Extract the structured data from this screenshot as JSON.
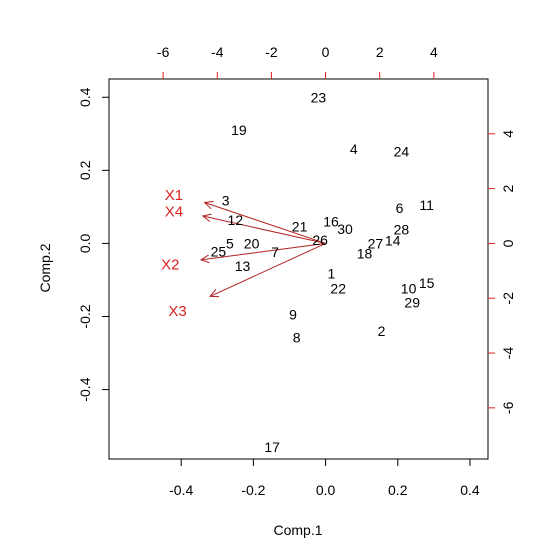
{
  "chart_data": {
    "type": "scatter",
    "title": "",
    "xlabel": "Comp.1",
    "ylabel": "Comp.2",
    "xlim": [
      -0.6,
      0.45
    ],
    "ylim": [
      -0.59,
      0.45
    ],
    "x_ticks": [
      "-0.4",
      "-0.2",
      "0.0",
      "0.2",
      "0.4"
    ],
    "x_tick_values": [
      -0.4,
      -0.2,
      0.0,
      0.2,
      0.4
    ],
    "y_ticks": [
      "-0.4",
      "-0.2",
      "0.0",
      "0.2",
      "0.4"
    ],
    "y_tick_values": [
      -0.4,
      -0.2,
      0.0,
      0.2,
      0.4
    ],
    "top_ticks": [
      "-6",
      "-4",
      "-2",
      "0",
      "2",
      "4"
    ],
    "top_tick_values": [
      -6,
      -4,
      -2,
      0,
      2,
      4
    ],
    "right_ticks": [
      "-6",
      "-4",
      "-2",
      "0",
      "2",
      "4"
    ],
    "right_tick_values": [
      -6,
      -4,
      -2,
      0,
      2,
      4
    ],
    "secondary_scale": 13.333,
    "point_color": "#000000",
    "arrow_color": "#b22222",
    "var_label_color": "#dd2222",
    "axis_color": "#000000",
    "secondary_axis_color": "#dd2222",
    "points": [
      {
        "label": "1",
        "x": 0.016,
        "y": -0.082
      },
      {
        "label": "2",
        "x": 0.155,
        "y": -0.24
      },
      {
        "label": "3",
        "x": -0.277,
        "y": 0.117
      },
      {
        "label": "4",
        "x": 0.078,
        "y": 0.258
      },
      {
        "label": "5",
        "x": -0.265,
        "y": 0.0
      },
      {
        "label": "6",
        "x": 0.205,
        "y": 0.097
      },
      {
        "label": "7",
        "x": -0.14,
        "y": -0.024
      },
      {
        "label": "8",
        "x": -0.08,
        "y": -0.258
      },
      {
        "label": "9",
        "x": -0.09,
        "y": -0.195
      },
      {
        "label": "10",
        "x": 0.23,
        "y": -0.124
      },
      {
        "label": "11",
        "x": 0.28,
        "y": 0.105
      },
      {
        "label": "12",
        "x": -0.25,
        "y": 0.064
      },
      {
        "label": "13",
        "x": -0.23,
        "y": -0.062
      },
      {
        "label": "14",
        "x": 0.186,
        "y": 0.008
      },
      {
        "label": "15",
        "x": 0.28,
        "y": -0.108
      },
      {
        "label": "16",
        "x": 0.015,
        "y": 0.06
      },
      {
        "label": "17",
        "x": -0.148,
        "y": -0.557
      },
      {
        "label": "18",
        "x": 0.108,
        "y": -0.028
      },
      {
        "label": "19",
        "x": -0.24,
        "y": 0.31
      },
      {
        "label": "20",
        "x": -0.205,
        "y": 0.0
      },
      {
        "label": "21",
        "x": -0.072,
        "y": 0.047
      },
      {
        "label": "22",
        "x": 0.035,
        "y": -0.123
      },
      {
        "label": "23",
        "x": -0.02,
        "y": 0.4
      },
      {
        "label": "24",
        "x": 0.21,
        "y": 0.252
      },
      {
        "label": "25",
        "x": -0.297,
        "y": -0.022
      },
      {
        "label": "26",
        "x": -0.015,
        "y": 0.01
      },
      {
        "label": "27",
        "x": 0.138,
        "y": 0.0
      },
      {
        "label": "28",
        "x": 0.21,
        "y": 0.038
      },
      {
        "label": "29",
        "x": 0.24,
        "y": -0.162
      },
      {
        "label": "30",
        "x": 0.054,
        "y": 0.04
      }
    ],
    "loadings": [
      {
        "label": "X1",
        "x": -0.335,
        "y": 0.112,
        "label_x": -0.42,
        "label_y": 0.132
      },
      {
        "label": "X4",
        "x": -0.34,
        "y": 0.075,
        "label_x": -0.42,
        "label_y": 0.088
      },
      {
        "label": "X2",
        "x": -0.345,
        "y": -0.045,
        "label_x": -0.43,
        "label_y": -0.058
      },
      {
        "label": "X3",
        "x": -0.32,
        "y": -0.145,
        "label_x": -0.41,
        "label_y": -0.185
      }
    ]
  }
}
